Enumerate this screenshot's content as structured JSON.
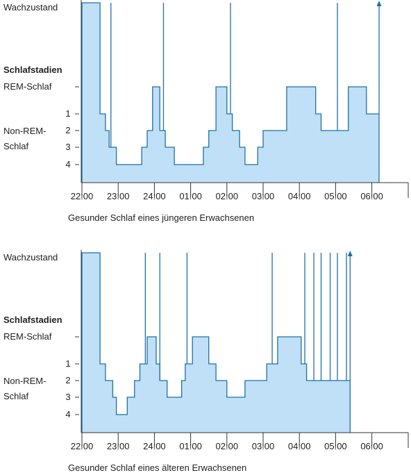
{
  "y_labels": {
    "wake": "Wachzustand",
    "heading": "Schlafstadien",
    "rem": "REM-Schlaf",
    "nonrem_line1": "Non-REM-",
    "nonrem_line2": "Schlaf",
    "stage_ticks": [
      "1",
      "2",
      "3",
      "4"
    ]
  },
  "colors": {
    "fill": "#bfe0f6",
    "line": "#1f6fa8",
    "axis": "#333333"
  },
  "chart_data": [
    {
      "type": "area",
      "caption": "Gesunder Schlaf eines jüngeren Erwachsenen",
      "x_ticks": [
        "22:00",
        "23:00",
        "24:00",
        "01:00",
        "02:00",
        "03:00",
        "04:00",
        "05:00",
        "06:00"
      ],
      "x_range_hours": [
        22,
        30.9
      ],
      "y_levels": [
        "4",
        "3",
        "2",
        "1",
        "REM-Schlaf",
        "Wachzustand"
      ],
      "steps": [
        [
          22.0,
          "Wachzustand"
        ],
        [
          22.5,
          "1"
        ],
        [
          22.65,
          "2"
        ],
        [
          22.75,
          "3"
        ],
        [
          22.95,
          "4"
        ],
        [
          23.65,
          "3"
        ],
        [
          23.8,
          "2"
        ],
        [
          23.95,
          "REM-Schlaf"
        ],
        [
          24.15,
          "2"
        ],
        [
          24.3,
          "3"
        ],
        [
          24.55,
          "4"
        ],
        [
          25.35,
          "3"
        ],
        [
          25.5,
          "2"
        ],
        [
          25.7,
          "REM-Schlaf"
        ],
        [
          26.0,
          "1"
        ],
        [
          26.15,
          "2"
        ],
        [
          26.35,
          "3"
        ],
        [
          26.5,
          "4"
        ],
        [
          26.85,
          "3"
        ],
        [
          27.0,
          "2"
        ],
        [
          27.65,
          "REM-Schlaf"
        ],
        [
          28.45,
          "1"
        ],
        [
          28.6,
          "2"
        ],
        [
          29.35,
          "REM-Schlaf"
        ],
        [
          29.85,
          "1"
        ],
        [
          30.2,
          "1"
        ]
      ],
      "wake_spikes_hours": [
        22.8,
        24.25,
        26.1,
        29.05
      ],
      "end_arrow_hours": 30.2
    },
    {
      "type": "area",
      "caption": "Gesunder Schlaf eines älteren Erwachsenen",
      "x_ticks": [
        "22:00",
        "23:00",
        "24:00",
        "01:00",
        "02:00",
        "03:00",
        "04:00",
        "05:00",
        "06:00"
      ],
      "x_range_hours": [
        22,
        30.9
      ],
      "y_levels": [
        "4",
        "3",
        "2",
        "1",
        "REM-Schlaf",
        "Wachzustand"
      ],
      "steps": [
        [
          22.0,
          "Wachzustand"
        ],
        [
          22.5,
          "1"
        ],
        [
          22.65,
          "2"
        ],
        [
          22.85,
          "3"
        ],
        [
          22.95,
          "4"
        ],
        [
          23.25,
          "3"
        ],
        [
          23.45,
          "2"
        ],
        [
          23.6,
          "1"
        ],
        [
          23.8,
          "REM-Schlaf"
        ],
        [
          24.05,
          "1"
        ],
        [
          24.15,
          "2"
        ],
        [
          24.35,
          "3"
        ],
        [
          24.75,
          "2"
        ],
        [
          24.85,
          "1"
        ],
        [
          25.05,
          "REM-Schlaf"
        ],
        [
          25.5,
          "1"
        ],
        [
          25.7,
          "2"
        ],
        [
          26.0,
          "3"
        ],
        [
          26.5,
          "2"
        ],
        [
          27.1,
          "1"
        ],
        [
          27.4,
          "REM-Schlaf"
        ],
        [
          28.05,
          "1"
        ],
        [
          28.2,
          "2"
        ],
        [
          29.4,
          "2"
        ]
      ],
      "wake_spikes_hours": [
        23.75,
        24.15,
        24.9,
        27.25,
        28.15,
        28.4,
        28.6,
        28.85,
        29.05,
        29.3
      ],
      "end_arrow_hours": 29.4
    }
  ]
}
